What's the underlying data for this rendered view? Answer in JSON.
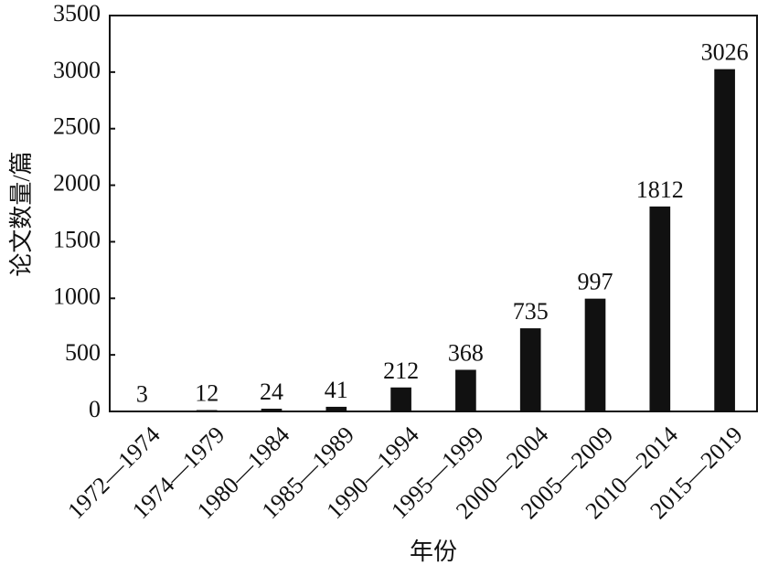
{
  "chart_data": {
    "type": "bar",
    "x_label": "年份",
    "y_label": "论文数量/篇",
    "categories": [
      "1972—1974",
      "1974—1979",
      "1980—1984",
      "1985—1989",
      "1990—1994",
      "1995—1999",
      "2000—2004",
      "2005—2009",
      "2010—2014",
      "2015—2019"
    ],
    "values": [
      3,
      12,
      24,
      41,
      212,
      368,
      735,
      997,
      1812,
      3026
    ],
    "color": "#111111",
    "ylim": [
      0,
      3500
    ],
    "yticks": [
      0,
      500,
      1000,
      1500,
      2000,
      2500,
      3000,
      3500
    ]
  }
}
